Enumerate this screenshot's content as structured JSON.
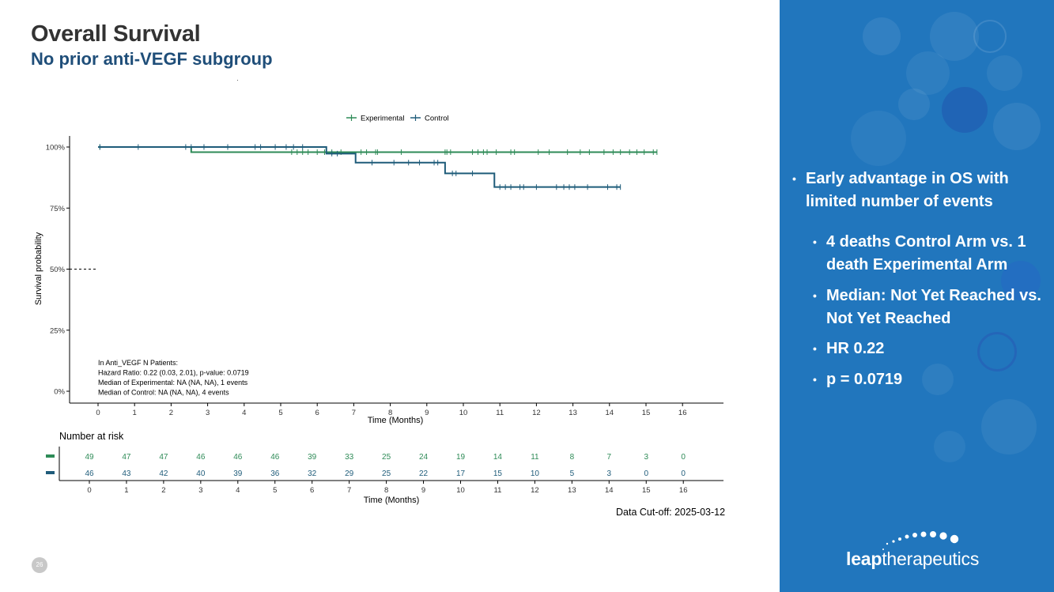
{
  "slide": {
    "title": "Overall Survival",
    "subtitle": "No prior anti-VEGF subgroup",
    "page_number": "26",
    "data_cutoff": "Data Cut-off: 2025-03-12"
  },
  "chart_data": {
    "type": "line",
    "subtype": "kaplan-meier",
    "xlabel": "Time (Months)",
    "ylabel": "Survival probability",
    "xlim": [
      0,
      16
    ],
    "ylim": [
      0,
      100
    ],
    "x_ticks": [
      "0",
      "1",
      "2",
      "3",
      "4",
      "5",
      "6",
      "7",
      "8",
      "9",
      "10",
      "11",
      "12",
      "13",
      "14",
      "15",
      "16"
    ],
    "y_ticks": [
      {
        "value": 100,
        "label": "100%"
      },
      {
        "value": 75,
        "label": "75%"
      },
      {
        "value": 50,
        "label": "50%"
      },
      {
        "value": 25,
        "label": "25%"
      },
      {
        "value": 0,
        "label": "0%"
      }
    ],
    "median_reference": 50,
    "legend": [
      "Experimental",
      "Control"
    ],
    "series": [
      {
        "name": "Experimental",
        "color": "#2e8b57",
        "steps": [
          [
            0,
            100
          ],
          [
            2.55,
            97.9
          ]
        ],
        "end_x": 15.3,
        "censor_times": [
          0.05,
          5.3,
          5.45,
          5.6,
          5.75,
          6.0,
          6.2,
          6.4,
          6.65,
          7.2,
          7.35,
          7.6,
          7.65,
          8.3,
          9.5,
          9.55,
          9.65,
          10.25,
          10.4,
          10.55,
          10.65,
          10.9,
          11.3,
          11.4,
          12.05,
          12.35,
          12.85,
          13.2,
          13.45,
          13.85,
          14.1,
          14.3,
          14.55,
          14.75,
          14.95,
          15.2,
          15.3
        ]
      },
      {
        "name": "Control",
        "color": "#1f5c7a",
        "steps": [
          [
            0,
            100
          ],
          [
            6.25,
            97.3
          ],
          [
            7.05,
            93.6
          ],
          [
            9.5,
            89.2
          ],
          [
            10.85,
            83.6
          ]
        ],
        "end_x": 14.3,
        "censor_times": [
          0.05,
          1.1,
          2.4,
          2.55,
          2.9,
          3.55,
          4.3,
          4.45,
          4.85,
          5.15,
          5.35,
          5.6,
          6.4,
          6.55,
          7.5,
          8.1,
          8.5,
          8.8,
          9.2,
          9.3,
          9.7,
          9.8,
          10.25,
          11.0,
          11.15,
          11.3,
          11.55,
          11.65,
          12.0,
          12.55,
          12.75,
          12.9,
          13.05,
          13.4,
          13.95,
          14.2,
          14.3
        ]
      }
    ],
    "annotation": [
      "In Anti_VEGF N Patients:",
      "Hazard Ratio: 0.22 (0.03, 2.01), p-value: 0.0719",
      "Median of Experimental: NA (NA, NA), 1 events",
      "Median of Control: NA (NA, NA), 4 events"
    ],
    "risk_table": {
      "title": "Number at risk",
      "xlabel": "Time (Months)",
      "times": [
        "0",
        "1",
        "2",
        "3",
        "4",
        "5",
        "6",
        "7",
        "8",
        "9",
        "10",
        "11",
        "12",
        "13",
        "14",
        "15",
        "16"
      ],
      "rows": [
        {
          "name": "Experimental",
          "color": "#2e8b57",
          "values": [
            49,
            47,
            47,
            46,
            46,
            46,
            39,
            33,
            25,
            24,
            19,
            14,
            11,
            8,
            7,
            3,
            0
          ]
        },
        {
          "name": "Control",
          "color": "#1f5c7a",
          "values": [
            46,
            43,
            42,
            40,
            39,
            36,
            32,
            29,
            25,
            22,
            17,
            15,
            10,
            5,
            3,
            0,
            0
          ]
        }
      ]
    }
  },
  "sidebar": {
    "background": "#2176bd",
    "bullet_main": "Early advantage in OS with limited number of events",
    "sub_bullets": [
      "4 deaths Control Arm vs. 1 death Experimental Arm",
      "Median: Not Yet Reached vs. Not Yet Reached",
      "HR 0.22",
      "p = 0.0719"
    ],
    "logo_bold": "leap",
    "logo_rest": "therapeutics"
  }
}
